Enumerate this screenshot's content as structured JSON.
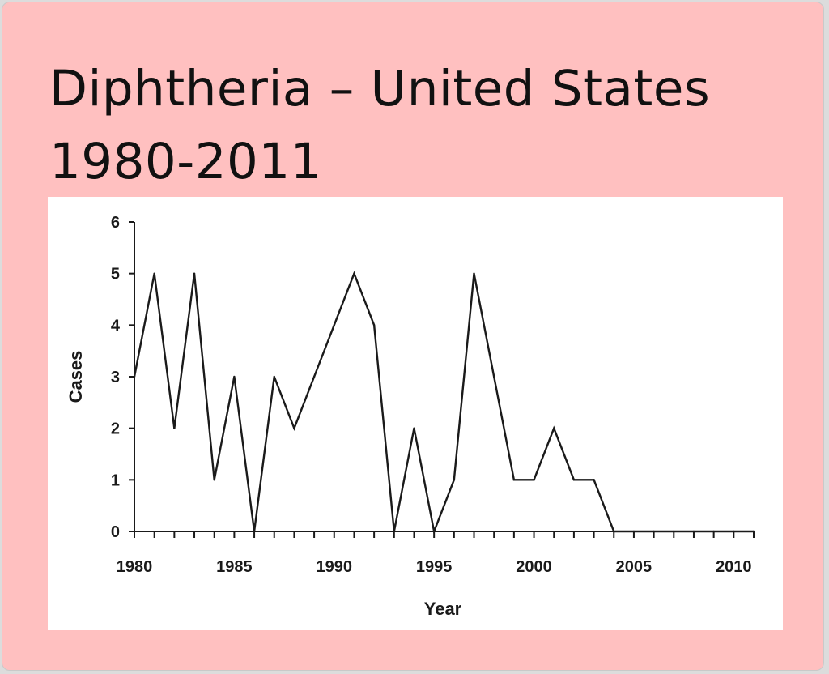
{
  "slide": {
    "title_line1": "Diphtheria – United States",
    "title_line2": "1980-2011",
    "background": "#ffc0c0"
  },
  "chart_data": {
    "type": "line",
    "title": "",
    "xlabel": "Year",
    "ylabel": "Cases",
    "xlim": [
      1980,
      2011
    ],
    "ylim": [
      0,
      6
    ],
    "x_ticks": [
      1980,
      1985,
      1990,
      1995,
      2000,
      2005,
      2010
    ],
    "y_ticks": [
      0,
      1,
      2,
      3,
      4,
      5,
      6
    ],
    "grid": false,
    "legend": "none",
    "line_color": "#1a1a1a",
    "series": [
      {
        "x": [
          1980,
          1981,
          1982,
          1983,
          1984,
          1985,
          1986,
          1987,
          1988,
          1989,
          1990,
          1991,
          1992,
          1993,
          1994,
          1995,
          1996,
          1997,
          1998,
          1999,
          2000,
          2001,
          2002,
          2003,
          2004,
          2005,
          2006,
          2007,
          2008,
          2009,
          2010,
          2011
        ],
        "values": [
          3,
          5,
          2,
          5,
          1,
          3,
          0,
          3,
          2,
          3,
          4,
          5,
          4,
          0,
          2,
          0,
          1,
          5,
          3,
          1,
          1,
          2,
          1,
          1,
          0,
          0,
          0,
          0,
          0,
          0,
          0,
          0
        ]
      }
    ]
  }
}
